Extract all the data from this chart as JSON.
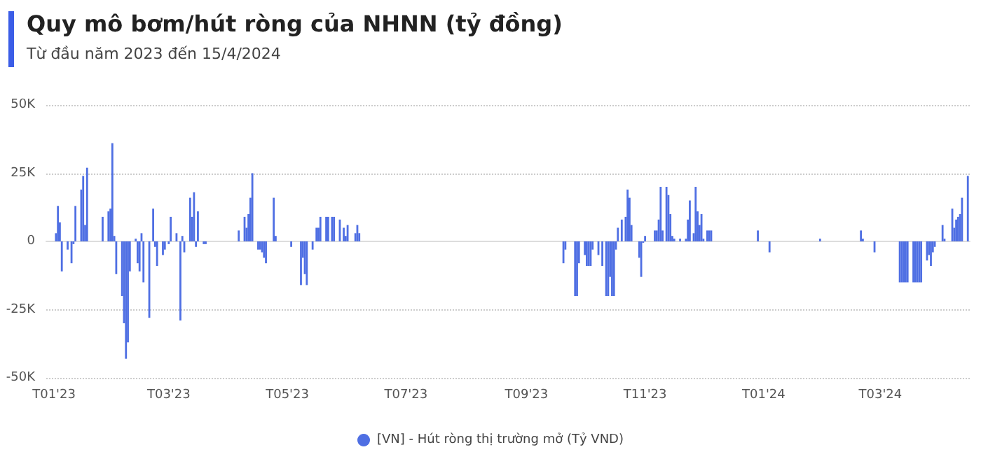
{
  "chart_data": {
    "type": "bar",
    "title": "Quy mô bơm/hút ròng của NHNN (tỷ đồng)",
    "subtitle": "Từ đầu năm 2023 đến 15/4/2024",
    "x": [
      "2023-01-02",
      "2023-01-03",
      "2023-01-04",
      "2023-01-05",
      "2023-01-08",
      "2023-01-10",
      "2023-01-11",
      "2023-01-12",
      "2023-01-15",
      "2023-01-16",
      "2023-01-17",
      "2023-01-18",
      "2023-01-26",
      "2023-01-29",
      "2023-01-30",
      "2023-01-31",
      "2023-02-01",
      "2023-02-02",
      "2023-02-05",
      "2023-02-06",
      "2023-02-07",
      "2023-02-08",
      "2023-02-09",
      "2023-02-12",
      "2023-02-13",
      "2023-02-14",
      "2023-02-15",
      "2023-02-16",
      "2023-02-19",
      "2023-02-21",
      "2023-02-22",
      "2023-02-23",
      "2023-02-26",
      "2023-02-27",
      "2023-03-01",
      "2023-03-02",
      "2023-03-05",
      "2023-03-07",
      "2023-03-08",
      "2023-03-09",
      "2023-03-12",
      "2023-03-13",
      "2023-03-14",
      "2023-03-15",
      "2023-03-16",
      "2023-03-19",
      "2023-03-20",
      "2023-04-06",
      "2023-04-09",
      "2023-04-10",
      "2023-04-11",
      "2023-04-12",
      "2023-04-13",
      "2023-04-16",
      "2023-04-17",
      "2023-04-18",
      "2023-04-19",
      "2023-04-20",
      "2023-04-24",
      "2023-04-25",
      "2023-05-03",
      "2023-05-08",
      "2023-05-09",
      "2023-05-10",
      "2023-05-11",
      "2023-05-14",
      "2023-05-16",
      "2023-05-17",
      "2023-05-18",
      "2023-05-21",
      "2023-05-22",
      "2023-05-24",
      "2023-05-25",
      "2023-05-28",
      "2023-05-30",
      "2023-05-31",
      "2023-06-01",
      "2023-06-05",
      "2023-06-06",
      "2023-06-07",
      "2023-09-20",
      "2023-09-21",
      "2023-09-26",
      "2023-09-27",
      "2023-09-28",
      "2023-10-01",
      "2023-10-02",
      "2023-10-03",
      "2023-10-04",
      "2023-10-05",
      "2023-10-08",
      "2023-10-10",
      "2023-10-12",
      "2023-10-13",
      "2023-10-14",
      "2023-10-15",
      "2023-10-16",
      "2023-10-17",
      "2023-10-18",
      "2023-10-20",
      "2023-10-22",
      "2023-10-23",
      "2023-10-24",
      "2023-10-25",
      "2023-10-29",
      "2023-10-30",
      "2023-10-31",
      "2023-11-01",
      "2023-11-06",
      "2023-11-07",
      "2023-11-08",
      "2023-11-09",
      "2023-11-10",
      "2023-11-12",
      "2023-11-13",
      "2023-11-14",
      "2023-11-15",
      "2023-11-16",
      "2023-11-19",
      "2023-11-22",
      "2023-11-23",
      "2023-11-24",
      "2023-11-26",
      "2023-11-27",
      "2023-11-28",
      "2023-11-29",
      "2023-11-30",
      "2023-12-01",
      "2023-12-03",
      "2023-12-04",
      "2023-12-05",
      "2023-12-29",
      "2024-01-04",
      "2024-01-30",
      "2024-02-20",
      "2024-02-21",
      "2024-02-27",
      "2024-03-11",
      "2024-03-12",
      "2024-03-13",
      "2024-03-14",
      "2024-03-15",
      "2024-03-18",
      "2024-03-19",
      "2024-03-20",
      "2024-03-21",
      "2024-03-22",
      "2024-03-25",
      "2024-03-26",
      "2024-03-27",
      "2024-03-28",
      "2024-03-29",
      "2024-04-02",
      "2024-04-03",
      "2024-04-07",
      "2024-04-08",
      "2024-04-09",
      "2024-04-10",
      "2024-04-11",
      "2024-04-12",
      "2024-04-15"
    ],
    "series": [
      {
        "name": "[VN] - Hút ròng thị trường mở (Tỷ VND)",
        "color": "#4f6fe3",
        "values": [
          3000,
          13000,
          7000,
          -11000,
          -3000,
          -8000,
          -1000,
          13000,
          19000,
          24000,
          6000,
          27000,
          9000,
          11000,
          12000,
          36000,
          2000,
          -12000,
          -20000,
          -30000,
          -43000,
          -37000,
          -11000,
          1000,
          -8000,
          -11000,
          3000,
          -15000,
          -28000,
          12000,
          -2000,
          -9000,
          -5000,
          -3000,
          -1000,
          9000,
          3000,
          -29000,
          2000,
          -4000,
          16000,
          9000,
          18000,
          -2000,
          11000,
          -1000,
          -1000,
          4000,
          9000,
          5000,
          10000,
          16000,
          25000,
          -3000,
          -3000,
          -4000,
          -6000,
          -8000,
          16000,
          2000,
          -2000,
          -16000,
          -6000,
          -12000,
          -16000,
          -3000,
          5000,
          5000,
          9000,
          9000,
          9000,
          9000,
          9000,
          8000,
          5000,
          2000,
          6000,
          3000,
          6000,
          3000,
          -8000,
          -3000,
          -20000,
          -20000,
          -8000,
          -5000,
          -9000,
          -9000,
          -9000,
          -3000,
          -5000,
          -9000,
          -20000,
          -20000,
          -13000,
          -20000,
          -20000,
          -3000,
          5000,
          8000,
          9000,
          19000,
          16000,
          6000,
          -6000,
          -13000,
          -500,
          2000,
          4000,
          4000,
          8000,
          20000,
          4000,
          20000,
          17000,
          10000,
          2000,
          1000,
          1000,
          1000,
          8000,
          15000,
          3000,
          20000,
          11000,
          6000,
          10000,
          1000,
          4000,
          4000,
          4000,
          4000,
          -4000,
          1000,
          4000,
          1000,
          -4000,
          -15000,
          -15000,
          -15000,
          -15000,
          -15000,
          -15000,
          -15000,
          -15000,
          -15000,
          -15000,
          -7000,
          -5000,
          -9000,
          -4000,
          -2000,
          6000,
          1000,
          12000,
          5000,
          8000,
          9000,
          10000,
          16000,
          24000
        ]
      }
    ],
    "xlim": [
      "2022-12-28",
      "2024-04-16"
    ],
    "xticks": [
      {
        "value": "2023-01-01",
        "label": "T01'23"
      },
      {
        "value": "2023-03-01",
        "label": "T03'23"
      },
      {
        "value": "2023-05-01",
        "label": "T05'23"
      },
      {
        "value": "2023-07-01",
        "label": "T07'23"
      },
      {
        "value": "2023-09-01",
        "label": "T09'23"
      },
      {
        "value": "2023-11-01",
        "label": "T11'23"
      },
      {
        "value": "2024-01-01",
        "label": "T01'24"
      },
      {
        "value": "2024-03-01",
        "label": "T03'24"
      }
    ],
    "ylim": [
      -50000,
      50000
    ],
    "yticks": [
      {
        "value": -50000,
        "label": "-50K"
      },
      {
        "value": -25000,
        "label": "-25K"
      },
      {
        "value": 0,
        "label": "0"
      },
      {
        "value": 25000,
        "label": "25K"
      },
      {
        "value": 50000,
        "label": "50K"
      }
    ],
    "grid": "y",
    "legend": "bottom",
    "marker": "circle"
  }
}
